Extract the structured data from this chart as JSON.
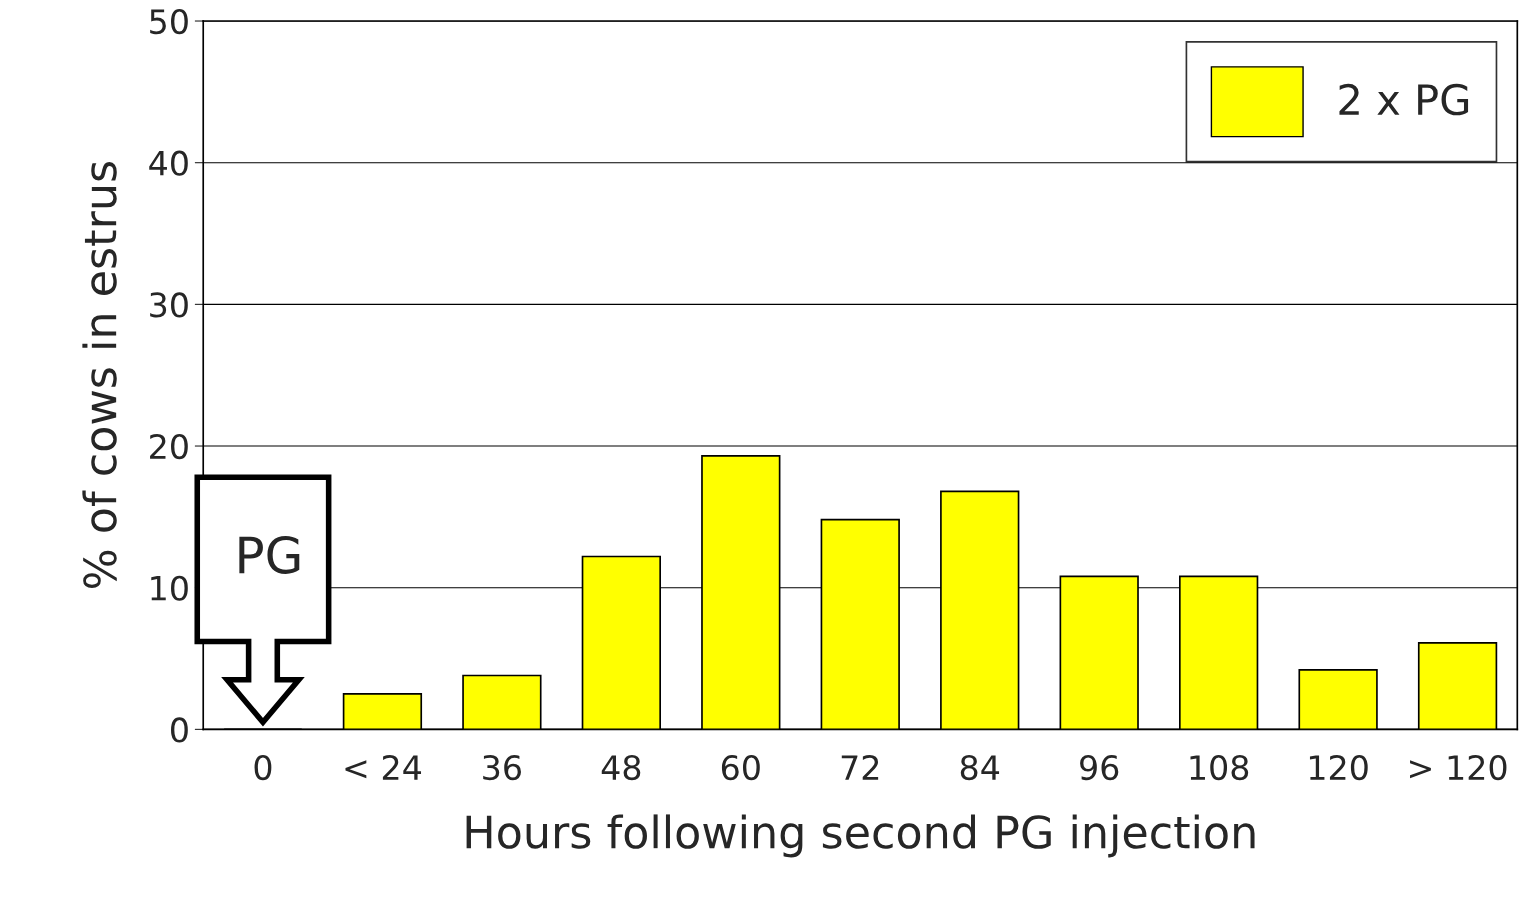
{
  "chart_data": {
    "type": "bar",
    "xlabel": "Hours following second PG injection",
    "ylabel": "% of cows in estrus",
    "categories": [
      "0",
      "< 24",
      "36",
      "48",
      "60",
      "72",
      "84",
      "96",
      "108",
      "120",
      "> 120"
    ],
    "series": [
      {
        "name": "2 x PG",
        "color": "#ffff00",
        "values": [
          0,
          2.5,
          3.8,
          12.2,
          19.3,
          14.8,
          16.8,
          10.8,
          10.8,
          4.2,
          6.1
        ]
      }
    ],
    "ylim": [
      0,
      50
    ],
    "yticks": [
      0,
      10,
      20,
      30,
      40,
      50
    ],
    "grid": "y",
    "legend": "top right",
    "annotations": [
      "PG"
    ]
  }
}
